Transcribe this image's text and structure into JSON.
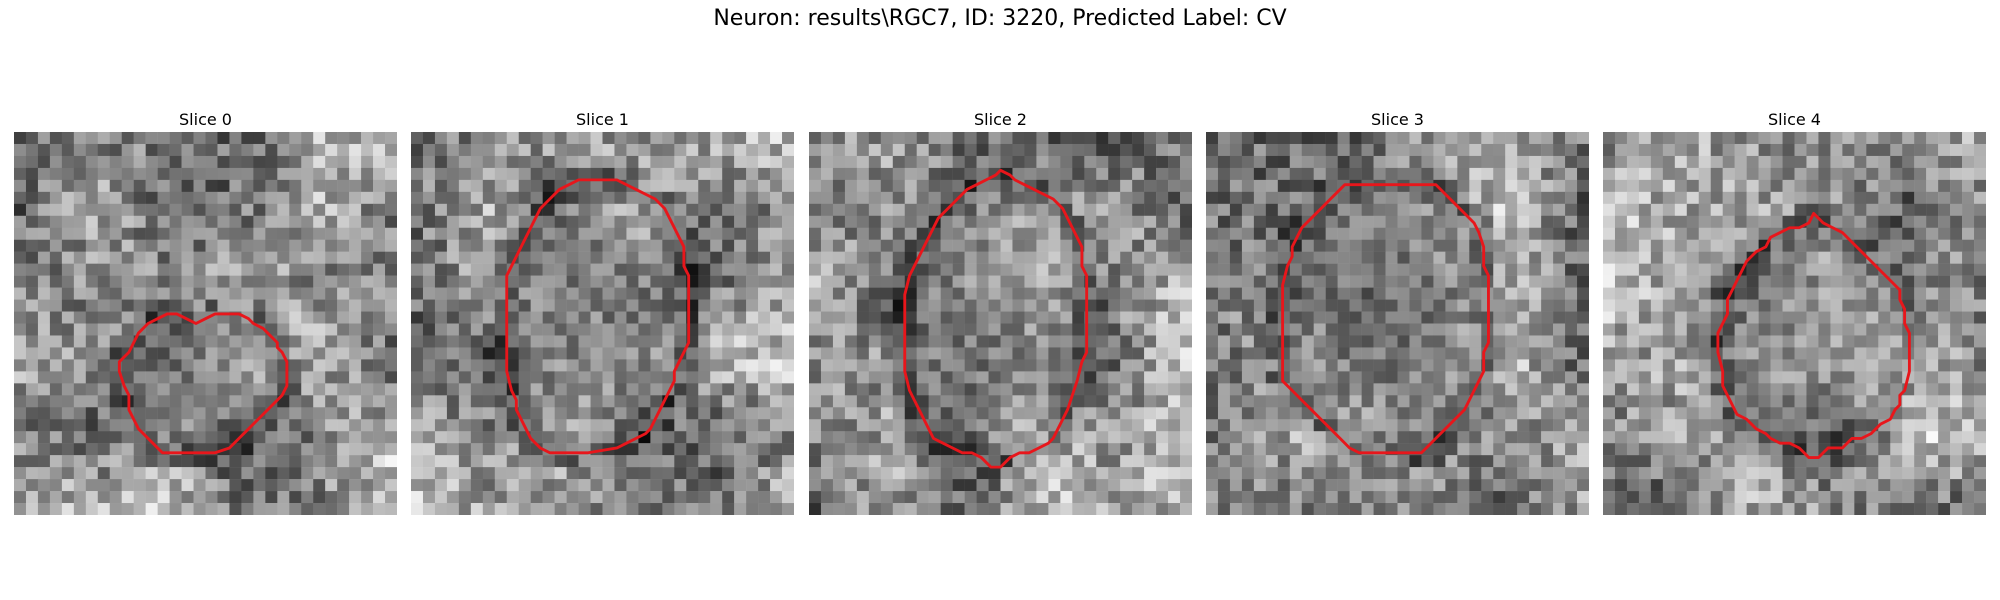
{
  "figure": {
    "title": "Neuron: results\\RGC7, ID: 3220, Predicted Label: CV"
  },
  "panels": [
    {
      "title": "Slice 0",
      "image_desc": "grayscale-microscopy-patch",
      "contour_color": "#e8161b",
      "seed": 11,
      "contour": [
        [
          38,
          40
        ],
        [
          40,
          39
        ],
        [
          42,
          38
        ],
        [
          47,
          38
        ],
        [
          49,
          39
        ],
        [
          50,
          40
        ],
        [
          52,
          41
        ],
        [
          53,
          42
        ],
        [
          55,
          44
        ],
        [
          55,
          45
        ],
        [
          56,
          46
        ],
        [
          57,
          48
        ],
        [
          57,
          53
        ],
        [
          56,
          55
        ],
        [
          55,
          56
        ],
        [
          53,
          58
        ],
        [
          52,
          59
        ],
        [
          51,
          60
        ],
        [
          47,
          64
        ],
        [
          45,
          66
        ],
        [
          42,
          67
        ],
        [
          31,
          67
        ],
        [
          30,
          66
        ],
        [
          29,
          65
        ],
        [
          28,
          64
        ],
        [
          26,
          62
        ],
        [
          25,
          60
        ],
        [
          24,
          58
        ],
        [
          24,
          55
        ],
        [
          23,
          53
        ],
        [
          22,
          50
        ],
        [
          22,
          48
        ],
        [
          24,
          46
        ],
        [
          25,
          44
        ],
        [
          26,
          42
        ],
        [
          28,
          40
        ],
        [
          30,
          39
        ],
        [
          32,
          38
        ],
        [
          34,
          38
        ],
        [
          36,
          39
        ]
      ]
    },
    {
      "title": "Slice 1",
      "image_desc": "grayscale-microscopy-patch",
      "contour_color": "#e8161b",
      "seed": 23,
      "contour": [
        [
          40,
          10
        ],
        [
          43,
          10
        ],
        [
          45,
          11
        ],
        [
          47,
          12
        ],
        [
          49,
          13
        ],
        [
          51,
          14
        ],
        [
          53,
          16
        ],
        [
          54,
          18
        ],
        [
          55,
          20
        ],
        [
          56,
          22
        ],
        [
          57,
          24
        ],
        [
          57,
          28
        ],
        [
          58,
          30
        ],
        [
          58,
          40
        ],
        [
          58,
          44
        ],
        [
          57,
          46
        ],
        [
          56,
          48
        ],
        [
          55,
          50
        ],
        [
          55,
          52
        ],
        [
          54,
          54
        ],
        [
          53,
          56
        ],
        [
          52,
          58
        ],
        [
          51,
          60
        ],
        [
          50,
          62
        ],
        [
          49,
          63
        ],
        [
          47,
          64
        ],
        [
          45,
          65
        ],
        [
          43,
          66
        ],
        [
          37,
          67
        ],
        [
          29,
          67
        ],
        [
          27,
          66
        ],
        [
          26,
          65
        ],
        [
          25,
          64
        ],
        [
          24,
          62
        ],
        [
          23,
          60
        ],
        [
          22,
          58
        ],
        [
          22,
          56
        ],
        [
          21,
          54
        ],
        [
          20,
          50
        ],
        [
          20,
          44
        ],
        [
          20,
          30
        ],
        [
          21,
          28
        ],
        [
          22,
          26
        ],
        [
          23,
          24
        ],
        [
          24,
          22
        ],
        [
          25,
          20
        ],
        [
          26,
          18
        ],
        [
          27,
          16
        ],
        [
          29,
          14
        ],
        [
          31,
          12
        ],
        [
          33,
          11
        ],
        [
          35,
          10
        ]
      ]
    },
    {
      "title": "Slice 2",
      "image_desc": "grayscale-microscopy-patch",
      "contour_color": "#e8161b",
      "seed": 37,
      "contour": [
        [
          40,
          8
        ],
        [
          42,
          9
        ],
        [
          43,
          10
        ],
        [
          45,
          11
        ],
        [
          47,
          12
        ],
        [
          49,
          13
        ],
        [
          51,
          14
        ],
        [
          53,
          16
        ],
        [
          54,
          18
        ],
        [
          55,
          20
        ],
        [
          56,
          22
        ],
        [
          57,
          24
        ],
        [
          57,
          28
        ],
        [
          58,
          30
        ],
        [
          58,
          40
        ],
        [
          58,
          46
        ],
        [
          57,
          48
        ],
        [
          56,
          52
        ],
        [
          55,
          55
        ],
        [
          54,
          58
        ],
        [
          53,
          60
        ],
        [
          52,
          62
        ],
        [
          51,
          64
        ],
        [
          50,
          65
        ],
        [
          48,
          66
        ],
        [
          46,
          67
        ],
        [
          44,
          67
        ],
        [
          42,
          68
        ],
        [
          40,
          70
        ],
        [
          38,
          70
        ],
        [
          36,
          68
        ],
        [
          34,
          67
        ],
        [
          32,
          67
        ],
        [
          30,
          66
        ],
        [
          28,
          65
        ],
        [
          26,
          64
        ],
        [
          25,
          62
        ],
        [
          24,
          60
        ],
        [
          23,
          58
        ],
        [
          22,
          56
        ],
        [
          21,
          54
        ],
        [
          20,
          50
        ],
        [
          20,
          44
        ],
        [
          20,
          34
        ],
        [
          21,
          30
        ],
        [
          22,
          28
        ],
        [
          23,
          26
        ],
        [
          24,
          24
        ],
        [
          25,
          22
        ],
        [
          26,
          20
        ],
        [
          27,
          18
        ],
        [
          29,
          16
        ],
        [
          31,
          14
        ],
        [
          33,
          12
        ],
        [
          35,
          11
        ],
        [
          37,
          10
        ],
        [
          39,
          9
        ]
      ]
    },
    {
      "title": "Slice 3",
      "image_desc": "grayscale-microscopy-patch",
      "contour_color": "#e8161b",
      "seed": 53,
      "contour": [
        [
          29,
          11
        ],
        [
          48,
          11
        ],
        [
          50,
          13
        ],
        [
          52,
          15
        ],
        [
          54,
          17
        ],
        [
          56,
          19
        ],
        [
          57,
          21
        ],
        [
          58,
          24
        ],
        [
          58,
          28
        ],
        [
          59,
          30
        ],
        [
          59,
          38
        ],
        [
          59,
          44
        ],
        [
          58,
          46
        ],
        [
          58,
          50
        ],
        [
          57,
          52
        ],
        [
          56,
          54
        ],
        [
          55,
          56
        ],
        [
          54,
          58
        ],
        [
          52,
          60
        ],
        [
          50,
          62
        ],
        [
          48,
          64
        ],
        [
          46,
          66
        ],
        [
          45,
          67
        ],
        [
          32,
          67
        ],
        [
          30,
          66
        ],
        [
          28,
          64
        ],
        [
          26,
          62
        ],
        [
          24,
          60
        ],
        [
          22,
          58
        ],
        [
          20,
          56
        ],
        [
          18,
          54
        ],
        [
          16,
          52
        ],
        [
          16,
          46
        ],
        [
          16,
          32
        ],
        [
          17,
          28
        ],
        [
          18,
          26
        ],
        [
          18,
          24
        ],
        [
          19,
          22
        ],
        [
          20,
          20
        ],
        [
          22,
          18
        ],
        [
          24,
          16
        ],
        [
          26,
          14
        ],
        [
          28,
          12
        ]
      ]
    },
    {
      "title": "Slice 4",
      "image_desc": "grayscale-microscopy-patch",
      "contour_color": "#e8161b",
      "seed": 71,
      "contour": [
        [
          44,
          17
        ],
        [
          46,
          19
        ],
        [
          48,
          20
        ],
        [
          50,
          21
        ],
        [
          52,
          23
        ],
        [
          54,
          25
        ],
        [
          56,
          27
        ],
        [
          58,
          29
        ],
        [
          60,
          31
        ],
        [
          62,
          33
        ],
        [
          62,
          35
        ],
        [
          63,
          37
        ],
        [
          63,
          40
        ],
        [
          64,
          42
        ],
        [
          64,
          50
        ],
        [
          63,
          54
        ],
        [
          62,
          55
        ],
        [
          62,
          57
        ],
        [
          61,
          58
        ],
        [
          60,
          60
        ],
        [
          58,
          61
        ],
        [
          57,
          62
        ],
        [
          56,
          63
        ],
        [
          54,
          64
        ],
        [
          52,
          64
        ],
        [
          50,
          66
        ],
        [
          47,
          66
        ],
        [
          46,
          67
        ],
        [
          45,
          68
        ],
        [
          43,
          68
        ],
        [
          41,
          66
        ],
        [
          39,
          65
        ],
        [
          37,
          65
        ],
        [
          35,
          64
        ],
        [
          34,
          63
        ],
        [
          32,
          62
        ],
        [
          30,
          60
        ],
        [
          28,
          59
        ],
        [
          27,
          57
        ],
        [
          26,
          55
        ],
        [
          25,
          53
        ],
        [
          25,
          50
        ],
        [
          24,
          46
        ],
        [
          24,
          42
        ],
        [
          25,
          40
        ],
        [
          26,
          38
        ],
        [
          26,
          35
        ],
        [
          27,
          33
        ],
        [
          28,
          31
        ],
        [
          29,
          29
        ],
        [
          30,
          27
        ],
        [
          32,
          25
        ],
        [
          34,
          24
        ],
        [
          35,
          22
        ],
        [
          37,
          21
        ],
        [
          39,
          20
        ],
        [
          41,
          20
        ],
        [
          43,
          19
        ]
      ]
    }
  ]
}
